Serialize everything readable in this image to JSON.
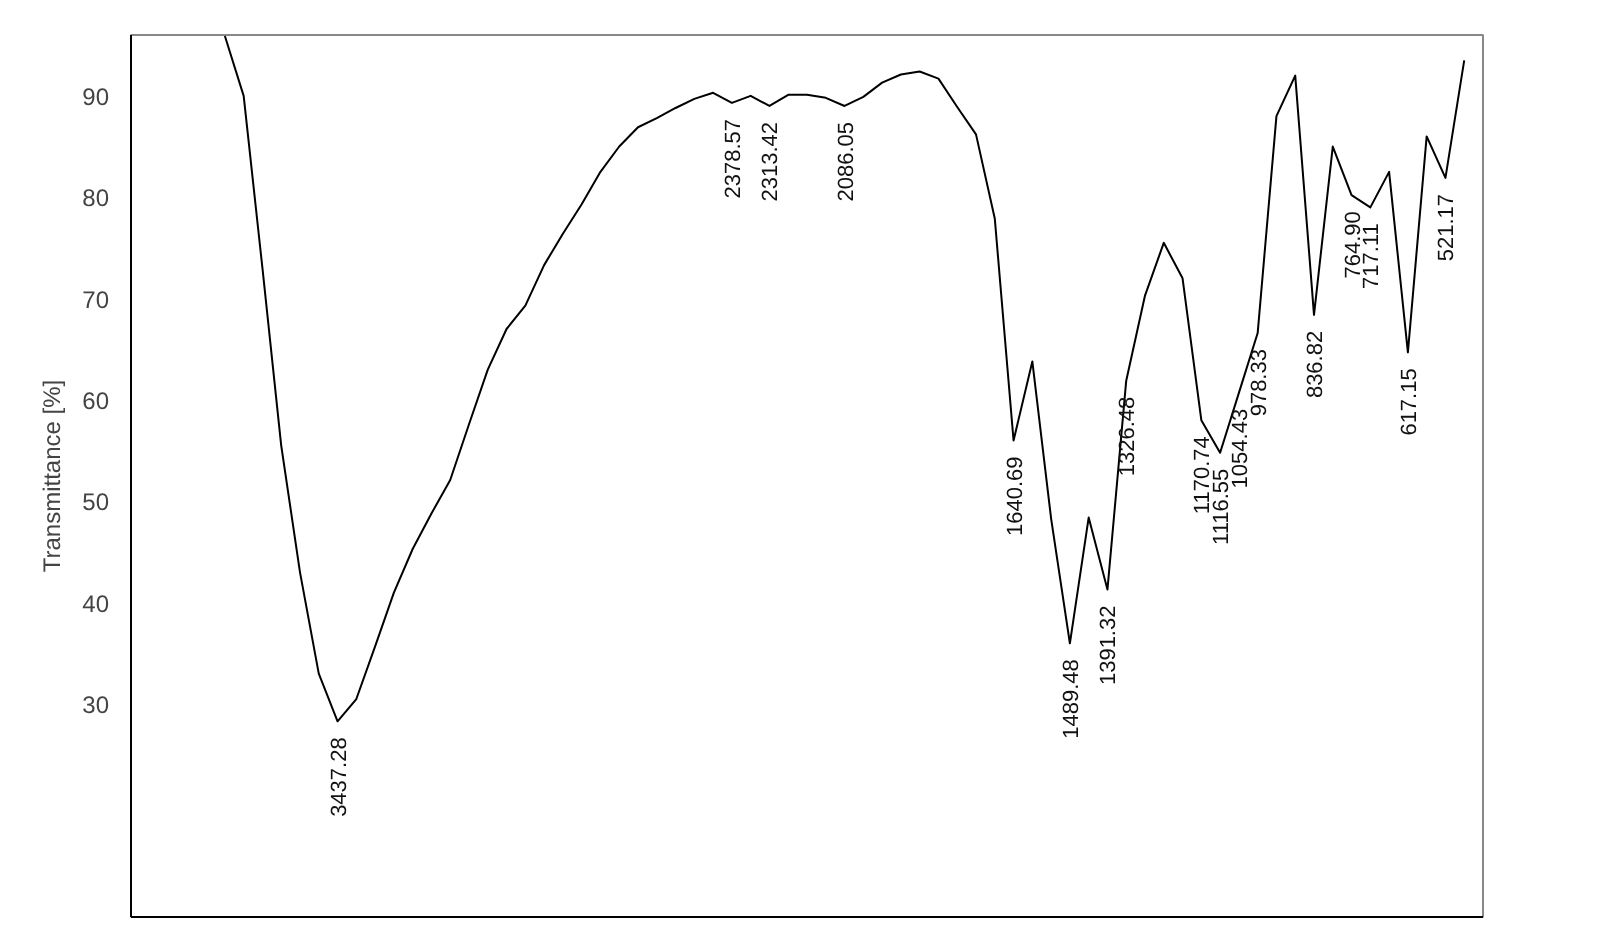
{
  "chart_data": {
    "type": "line",
    "ylabel": "Transmittance [%]",
    "categories": [
      null,
      null,
      null,
      null,
      null,
      null,
      null,
      null,
      null,
      null,
      null,
      "3437.28",
      null,
      null,
      null,
      null,
      null,
      null,
      null,
      null,
      null,
      null,
      null,
      null,
      null,
      null,
      null,
      null,
      null,
      null,
      null,
      null,
      "2378.57",
      null,
      "2313.42",
      null,
      null,
      null,
      "2086.05",
      null,
      null,
      null,
      null,
      null,
      null,
      null,
      null,
      "1640.69",
      null,
      null,
      "1489.48",
      null,
      "1391.32",
      "1326.48",
      null,
      null,
      null,
      "1170.74",
      "1116.55",
      "1054.43",
      "978.33",
      null,
      null,
      "836.82",
      null,
      "764.90",
      "717.11",
      null,
      "617.15",
      null,
      "521.17",
      null,
      null
    ],
    "ylim": [
      9,
      96
    ],
    "yticks": [
      30,
      40,
      50,
      60,
      70,
      80,
      90
    ],
    "grid": false,
    "marker": "none",
    "line_style": "solid",
    "series": [
      {
        "color": "#000000",
        "values": [
          null,
          null,
          null,
          null,
          null,
          95.9,
          90.0,
          73,
          55.5,
          43,
          33,
          28.3,
          30.5,
          35.7,
          41,
          45.3,
          48.8,
          52.1,
          57.6,
          63,
          67,
          69.3,
          73.3,
          76.4,
          79.3,
          82.5,
          85,
          86.9,
          87.8,
          88.8,
          89.7,
          90.3,
          89.3,
          90.0,
          89.0,
          90.1,
          90.1,
          89.8,
          89.0,
          89.9,
          91.3,
          92.1,
          92.4,
          91.7,
          88.9,
          86.2,
          77.9,
          56.0,
          63.8,
          48.3,
          36.0,
          48.4,
          41.3,
          61.9,
          70.3,
          75.5,
          72.0,
          58.0,
          54.8,
          60.7,
          66.6,
          88,
          92.0,
          68.4,
          85,
          80.2,
          79.0,
          82.5,
          64.7,
          86,
          81.9,
          93.5,
          null
        ]
      }
    ]
  }
}
